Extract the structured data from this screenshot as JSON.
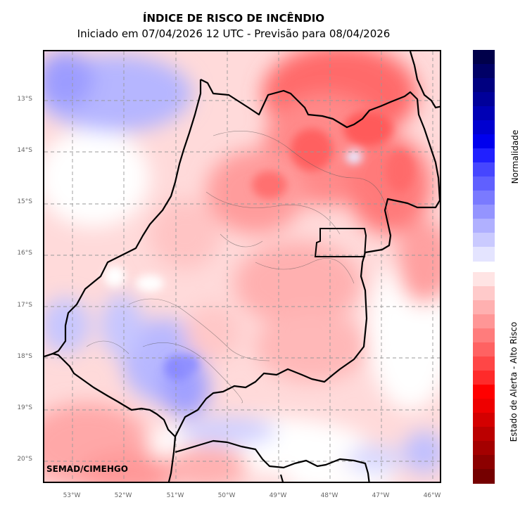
{
  "title": "ÍNDICE DE RISCO DE INCÊNDIO",
  "subtitle": "Iniciado em 07/04/2026 12 UTC - Previsão para 08/04/2026",
  "credit": "SEMAD/CIMEHGO",
  "lat_ticks": [
    "13°S",
    "14°S",
    "15°S",
    "16°S",
    "17°S",
    "18°S",
    "19°S",
    "20°S"
  ],
  "lon_ticks": [
    "53°W",
    "52°W",
    "51°W",
    "50°W",
    "49°W",
    "48°W",
    "47°W",
    "46°W"
  ],
  "colorbar": {
    "label_top": "Normalidade",
    "label_bottom": "Estado de Alerta - Alto Risco",
    "blue_colors": [
      "#00004a",
      "#000066",
      "#000080",
      "#00009a",
      "#0000b5",
      "#0000d0",
      "#0000ee",
      "#2020ff",
      "#4646ff",
      "#6060ff",
      "#7a7aff",
      "#9494ff",
      "#b0b0ff",
      "#cacaff",
      "#e4e4ff"
    ],
    "red_colors": [
      "#ffe4e4",
      "#ffcaca",
      "#ffb0b0",
      "#ff9696",
      "#ff7c7c",
      "#ff6262",
      "#ff4646",
      "#ff2a2a",
      "#ff0000",
      "#ee0000",
      "#d40000",
      "#bb0000",
      "#a40000",
      "#8c0000",
      "#750000"
    ]
  }
}
